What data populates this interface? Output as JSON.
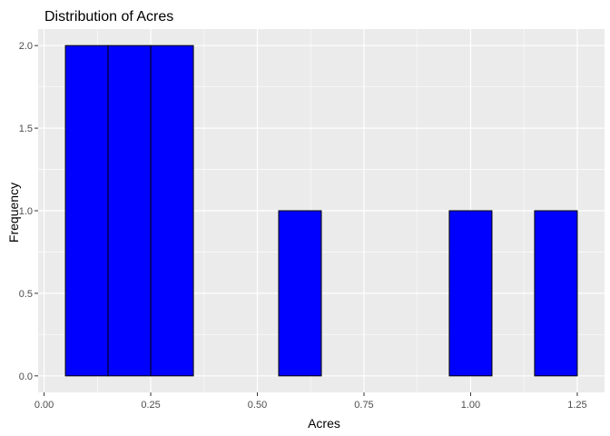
{
  "chart_data": {
    "type": "bar",
    "title": "Distribution of Acres",
    "xlabel": "Acres",
    "ylabel": "Frequency",
    "xlim": [
      -0.014,
      1.314
    ],
    "ylim": [
      -0.1,
      2.1
    ],
    "x_ticks": [
      "0.00",
      "0.25",
      "0.50",
      "0.75",
      "1.00",
      "1.25"
    ],
    "y_ticks": [
      "0.0",
      "0.5",
      "1.0",
      "1.5",
      "2.0"
    ],
    "bins": [
      {
        "start": 0.05,
        "end": 0.15,
        "count": 2
      },
      {
        "start": 0.15,
        "end": 0.25,
        "count": 2
      },
      {
        "start": 0.25,
        "end": 0.35,
        "count": 2
      },
      {
        "start": 0.35,
        "end": 0.45,
        "count": 0
      },
      {
        "start": 0.45,
        "end": 0.55,
        "count": 0
      },
      {
        "start": 0.55,
        "end": 0.65,
        "count": 1
      },
      {
        "start": 0.65,
        "end": 0.75,
        "count": 0
      },
      {
        "start": 0.75,
        "end": 0.85,
        "count": 0
      },
      {
        "start": 0.85,
        "end": 0.95,
        "count": 0
      },
      {
        "start": 0.95,
        "end": 1.05,
        "count": 1
      },
      {
        "start": 1.05,
        "end": 1.15,
        "count": 0
      },
      {
        "start": 1.15,
        "end": 1.25,
        "count": 1
      }
    ],
    "grid": true,
    "colors": {
      "fill": "#0000ff",
      "stroke": "#000000",
      "panel": "#ebebeb",
      "grid": "#ffffff"
    }
  }
}
